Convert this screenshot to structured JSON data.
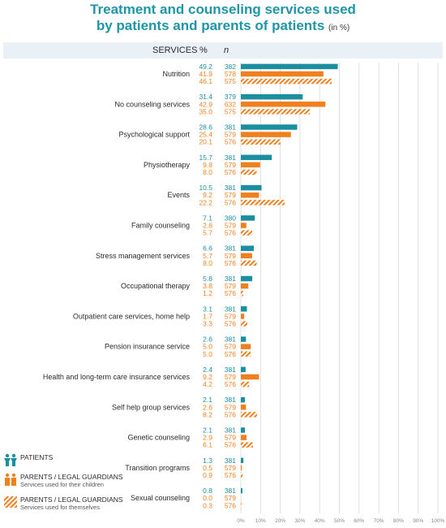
{
  "title": {
    "line1": "Treatment and counseling services used",
    "line2": "by patients and parents of patients",
    "unit": "(in %)"
  },
  "header": {
    "services": "SERVICES",
    "percent": "%",
    "n": "n"
  },
  "colors": {
    "patients": "#1a8fa0",
    "parents_children": "#f07f1e",
    "parents_themselves": "#f07f1e",
    "header_bg": "#e9f0f6",
    "title": "#1f95a8"
  },
  "legend": [
    {
      "icon": "patients-icon",
      "label": "PATIENTS",
      "sub": ""
    },
    {
      "icon": "parents-icon",
      "label": "PARENTS / LEGAL GUARDIANS",
      "sub": "Services used for their children"
    },
    {
      "icon": "hatch-icon",
      "label": "PARENTS / LEGAL GUARDIANS",
      "sub": "Services used for themselves"
    }
  ],
  "chart_data": {
    "type": "bar",
    "orientation": "horizontal",
    "xlim": [
      0,
      100
    ],
    "xticks": [
      "0%",
      "10%",
      "20%",
      "30%",
      "40%",
      "50%",
      "60%",
      "70%",
      "80%",
      "90%",
      "100%"
    ],
    "grid": true,
    "categories": [
      "Nutrition",
      "No counseling services",
      "Psychological support",
      "Physiotherapy",
      "Events",
      "Family counseling",
      "Stress management services",
      "Occupational therapy",
      "Outpatient care services, home help",
      "Pension insurance service",
      "Health and long-term care insurance services",
      "Self help group services",
      "Genetic counseling",
      "Transition programs",
      "Sexual counseling"
    ],
    "series": [
      {
        "name": "PATIENTS",
        "values": [
          "49.2",
          "31.4",
          "28.6",
          "15.7",
          "10.5",
          "7.1",
          "6.6",
          "5.8",
          "3.1",
          "2.6",
          "2.4",
          "2.1",
          "2.1",
          "1.3",
          "0.8"
        ],
        "n": [
          "382",
          "379",
          "381",
          "381",
          "381",
          "380",
          "381",
          "381",
          "381",
          "381",
          "381",
          "381",
          "381",
          "381",
          "381"
        ]
      },
      {
        "name": "PARENTS / LEGAL GUARDIANS Services used for their children",
        "values": [
          "41.9",
          "42.9",
          "25.4",
          "9.8",
          "9.2",
          "2.8",
          "5.7",
          "3.8",
          "1.7",
          "5.0",
          "9.2",
          "2.6",
          "2.9",
          "0.5",
          "0.0"
        ],
        "n": [
          "578",
          "632",
          "579",
          "579",
          "579",
          "579",
          "579",
          "579",
          "579",
          "579",
          "579",
          "579",
          "579",
          "579",
          "579"
        ]
      },
      {
        "name": "PARENTS / LEGAL GUARDIANS Services used for themselves",
        "values": [
          "46.1",
          "35.0",
          "20.1",
          "8.0",
          "22.2",
          "5.7",
          "8.0",
          "1.2",
          "3.3",
          "5.0",
          "4.2",
          "8.2",
          "6.1",
          "0.9",
          "0.3"
        ],
        "n": [
          "575",
          "575",
          "576",
          "576",
          "576",
          "576",
          "576",
          "576",
          "576",
          "576",
          "576",
          "576",
          "576",
          "576",
          "576"
        ]
      }
    ]
  }
}
